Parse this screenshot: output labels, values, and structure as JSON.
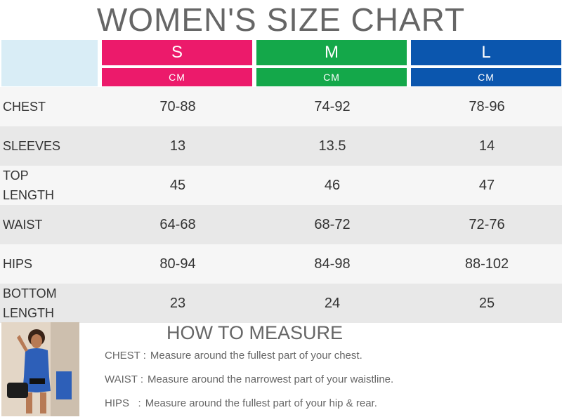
{
  "title": "WOMEN'S SIZE CHART",
  "sizes": [
    {
      "label": "S",
      "unit": "CM",
      "color": "#ec1a6b"
    },
    {
      "label": "M",
      "unit": "CM",
      "color": "#14a84a"
    },
    {
      "label": "L",
      "unit": "CM",
      "color": "#0b56ae"
    }
  ],
  "rows": [
    {
      "label": "CHEST",
      "values": [
        "70-88",
        "74-92",
        "78-96"
      ]
    },
    {
      "label": "SLEEVES",
      "values": [
        "13",
        "13.5",
        "14"
      ]
    },
    {
      "label": "TOP LENGTH",
      "values": [
        "45",
        "46",
        "47"
      ]
    },
    {
      "label": "WAIST",
      "values": [
        "64-68",
        "68-72",
        "72-76"
      ]
    },
    {
      "label": "HIPS",
      "values": [
        "80-94",
        "84-98",
        "88-102"
      ]
    },
    {
      "label": "BOTTOM LENGTH",
      "values": [
        "23",
        "24",
        "25"
      ]
    }
  ],
  "how_to_measure": {
    "title": "HOW TO MEASURE",
    "items": [
      {
        "label": "CHEST :",
        "text": "Measure around the fullest part of your chest."
      },
      {
        "label": "WAIST :",
        "text": "Measure around the narrowest part of your waistline."
      },
      {
        "label": "HIPS   :",
        "text": "Measure around the fullest part of your hip & rear."
      }
    ]
  }
}
